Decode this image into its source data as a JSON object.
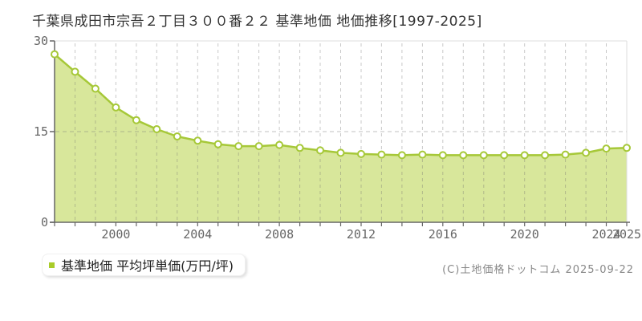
{
  "title": "千葉県成田市宗吾２丁目３００番２２ 基準地価 地価推移[1997-2025]",
  "legend": {
    "label": "基準地価 平均坪単価(万円/坪)",
    "marker_color": "#a9cc29"
  },
  "footer": {
    "copyright": "(C)土地価格ドットコム 2025-09-22"
  },
  "chart_data": {
    "type": "area",
    "title": "千葉県成田市宗吾２丁目３００番２２ 基準地価 地価推移[1997-2025]",
    "x": [
      1997,
      1998,
      1999,
      2000,
      2001,
      2002,
      2003,
      2004,
      2005,
      2006,
      2007,
      2008,
      2009,
      2010,
      2011,
      2012,
      2013,
      2014,
      2015,
      2016,
      2017,
      2018,
      2019,
      2020,
      2021,
      2022,
      2023,
      2024,
      2025
    ],
    "series": [
      {
        "name": "基準地価 平均坪単価(万円/坪)",
        "values": [
          27.8,
          24.9,
          22.1,
          19.0,
          16.9,
          15.4,
          14.2,
          13.5,
          12.9,
          12.6,
          12.6,
          12.8,
          12.3,
          11.9,
          11.5,
          11.3,
          11.2,
          11.1,
          11.2,
          11.1,
          11.1,
          11.1,
          11.1,
          11.1,
          11.1,
          11.2,
          11.5,
          12.2,
          12.3
        ]
      }
    ],
    "xlabel": "",
    "ylabel": "",
    "unit": "万円/坪",
    "ylim": [
      0,
      30
    ],
    "yticks": [
      0,
      15,
      30
    ],
    "xtick_years": [
      2000,
      2004,
      2008,
      2012,
      2016,
      2020,
      2024,
      2025
    ],
    "grid": {
      "vertical": "dashed line at every year",
      "horizontal": "dashed line at 15"
    },
    "legend_position": "bottom-left",
    "colors": {
      "line": "#a6c838",
      "fill": "#d8e79b",
      "marker_fill": "#ffffff",
      "marker_stroke": "#a6c838",
      "grid": "#c9c9c9",
      "axis": "#666666",
      "plot_border": "#dddddd",
      "title_text": "#333333",
      "tick_text": "#666666",
      "legend_marker": "#a9cc29",
      "copyright_text": "#888888"
    }
  }
}
